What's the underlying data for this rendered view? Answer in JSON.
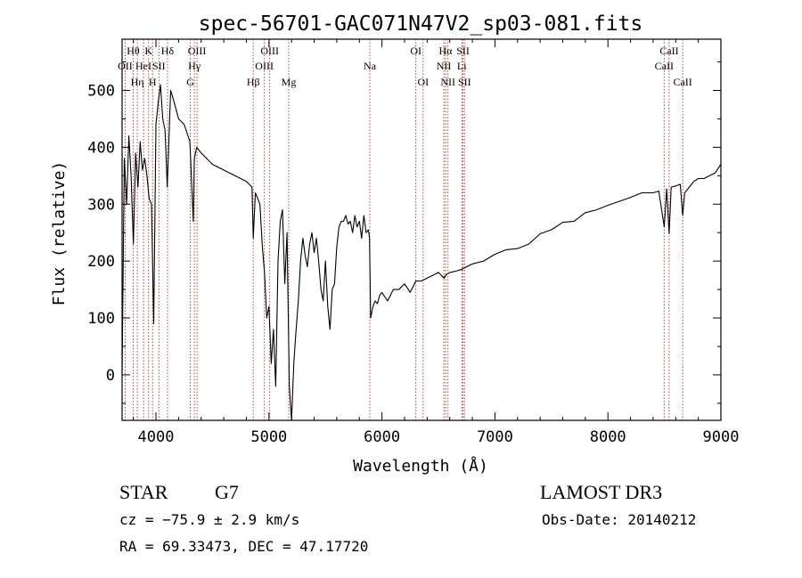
{
  "chart_data": {
    "type": "line",
    "title": "spec-56701-GAC071N47V2_sp03-081.fits",
    "xlabel": "Wavelength (Å)",
    "ylabel": "Flux (relative)",
    "xlim": [
      3700,
      9000
    ],
    "ylim": [
      -80,
      590
    ],
    "xticks": [
      "4000",
      "5000",
      "6000",
      "7000",
      "8000",
      "9000"
    ],
    "yticks": [
      "0",
      "100",
      "200",
      "300",
      "400",
      "500"
    ],
    "grid": false,
    "series": [
      {
        "x": [
          3700,
          3720,
          3740,
          3760,
          3780,
          3800,
          3820,
          3840,
          3860,
          3880,
          3900,
          3920,
          3940,
          3960,
          3980,
          4000,
          4020,
          4040,
          4060,
          4080,
          4100,
          4130,
          4160,
          4200,
          4250,
          4300,
          4330,
          4340,
          4360,
          4400,
          4450,
          4500,
          4550,
          4600,
          4650,
          4700,
          4750,
          4800,
          4850,
          4861,
          4880,
          4900,
          4920,
          4940,
          4960,
          4980,
          5000,
          5020,
          5040,
          5060,
          5080,
          5100,
          5120,
          5140,
          5160,
          5180,
          5200,
          5220,
          5240,
          5260,
          5280,
          5300,
          5320,
          5340,
          5360,
          5380,
          5400,
          5420,
          5440,
          5460,
          5480,
          5500,
          5520,
          5540,
          5560,
          5580,
          5600,
          5620,
          5640,
          5660,
          5680,
          5700,
          5720,
          5740,
          5760,
          5780,
          5800,
          5820,
          5840,
          5860,
          5880,
          5890,
          5900,
          5920,
          5940,
          5960,
          5980,
          6000,
          6050,
          6100,
          6150,
          6200,
          6250,
          6300,
          6350,
          6400,
          6450,
          6500,
          6550,
          6563,
          6600,
          6650,
          6700,
          6750,
          6800,
          6900,
          7000,
          7100,
          7200,
          7300,
          7400,
          7500,
          7600,
          7700,
          7800,
          7900,
          8000,
          8100,
          8200,
          8300,
          8400,
          8450,
          8498,
          8520,
          8542,
          8560,
          8600,
          8640,
          8662,
          8680,
          8720,
          8760,
          8800,
          8850,
          8900,
          8950,
          9000
        ],
        "y": [
          0,
          380,
          300,
          420,
          350,
          230,
          390,
          330,
          410,
          360,
          380,
          350,
          310,
          300,
          90,
          440,
          480,
          510,
          450,
          430,
          330,
          500,
          480,
          450,
          440,
          410,
          270,
          380,
          400,
          390,
          380,
          370,
          365,
          360,
          355,
          350,
          345,
          340,
          330,
          240,
          320,
          310,
          300,
          230,
          180,
          100,
          120,
          20,
          80,
          -20,
          200,
          270,
          290,
          160,
          250,
          -20,
          -80,
          20,
          80,
          130,
          200,
          240,
          210,
          190,
          230,
          250,
          215,
          240,
          200,
          150,
          130,
          200,
          120,
          80,
          150,
          160,
          225,
          260,
          270,
          270,
          280,
          265,
          270,
          250,
          280,
          260,
          270,
          240,
          280,
          250,
          255,
          240,
          100,
          120,
          130,
          125,
          140,
          145,
          130,
          150,
          150,
          160,
          145,
          165,
          165,
          170,
          175,
          180,
          170,
          175,
          180,
          182,
          185,
          190,
          195,
          200,
          212,
          220,
          222,
          230,
          248,
          255,
          268,
          270,
          285,
          290,
          298,
          305,
          312,
          320,
          320,
          323,
          260,
          327,
          248,
          330,
          332,
          335,
          280,
          320,
          330,
          340,
          345,
          345,
          350,
          355,
          370
        ]
      }
    ],
    "lines": {
      "wavelengths": [
        3727,
        3798,
        3835,
        3889,
        3934,
        3970,
        4026,
        4102,
        4304,
        4340,
        4363,
        4861,
        4959,
        5007,
        5175,
        5893,
        6300,
        6364,
        6548,
        6563,
        6584,
        6707,
        6717,
        6731,
        8498,
        8542,
        8662
      ],
      "labels": [
        {
          "text": "Hθ",
          "x": 3798,
          "row": 1
        },
        {
          "text": "OII",
          "x": 3727,
          "row": 2
        },
        {
          "text": "Hη",
          "x": 3835,
          "row": 3
        },
        {
          "text": "HeI",
          "x": 3889,
          "row": 2
        },
        {
          "text": "K",
          "x": 3934,
          "row": 1
        },
        {
          "text": "H",
          "x": 3970,
          "row": 3
        },
        {
          "text": "SII",
          "x": 4026,
          "row": 2
        },
        {
          "text": "Hδ",
          "x": 4102,
          "row": 1
        },
        {
          "text": "OIII",
          "x": 4363,
          "row": 1
        },
        {
          "text": "Hγ",
          "x": 4340,
          "row": 2
        },
        {
          "text": "G",
          "x": 4304,
          "row": 3
        },
        {
          "text": "Hβ",
          "x": 4861,
          "row": 3
        },
        {
          "text": "OIII",
          "x": 5007,
          "row": 1
        },
        {
          "text": "OIII",
          "x": 4959,
          "row": 2
        },
        {
          "text": "Mg",
          "x": 5175,
          "row": 3
        },
        {
          "text": "Na",
          "x": 5893,
          "row": 2
        },
        {
          "text": "OI",
          "x": 6300,
          "row": 1
        },
        {
          "text": "OI",
          "x": 6364,
          "row": 3
        },
        {
          "text": "Hα",
          "x": 6563,
          "row": 1
        },
        {
          "text": "NII",
          "x": 6548,
          "row": 2
        },
        {
          "text": "NII",
          "x": 6584,
          "row": 3
        },
        {
          "text": "SII",
          "x": 6717,
          "row": 1
        },
        {
          "text": "Li",
          "x": 6707,
          "row": 2
        },
        {
          "text": "SII",
          "x": 6731,
          "row": 3
        },
        {
          "text": "CaII",
          "x": 8542,
          "row": 1
        },
        {
          "text": "CaII",
          "x": 8498,
          "row": 2
        },
        {
          "text": "CaII",
          "x": 8662,
          "row": 3
        }
      ]
    }
  },
  "info": {
    "object_class": "STAR",
    "subclass": "G7",
    "survey": "LAMOST DR3",
    "redshift": "cz = −75.9 ± 2.9 km/s",
    "obs_date": "Obs-Date: 20140212",
    "coords": "RA =  69.33473, DEC =  47.17720"
  },
  "colors": {
    "line_marker": "#b03030",
    "spectrum": "#000000"
  }
}
